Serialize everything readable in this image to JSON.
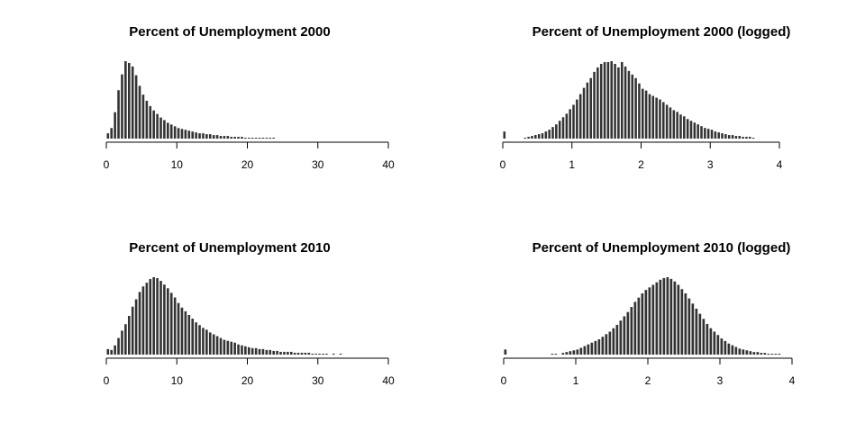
{
  "chart_data": [
    {
      "type": "bar",
      "title": "Percent of Unemployment 2000",
      "xlabel": "",
      "ylabel": "",
      "xlim": [
        0,
        40
      ],
      "xticks": [
        0,
        10,
        20,
        30,
        40
      ],
      "tick_labels": [
        "0",
        "10",
        "20",
        "30",
        "40"
      ],
      "bin_width": 0.5,
      "x": [
        0.0,
        0.5,
        1.0,
        1.5,
        2.0,
        2.5,
        3.0,
        3.5,
        4.0,
        4.5,
        5.0,
        5.5,
        6.0,
        6.5,
        7.0,
        7.5,
        8.0,
        8.5,
        9.0,
        9.5,
        10.0,
        10.5,
        11.0,
        11.5,
        12.0,
        12.5,
        13.0,
        13.5,
        14.0,
        14.5,
        15.0,
        15.5,
        16.0,
        16.5,
        17.0,
        17.5,
        18.0,
        18.5,
        19.0,
        19.5,
        20.0,
        20.5,
        21.0,
        21.5,
        22.0,
        22.5,
        23.0,
        23.5
      ],
      "values": [
        6,
        12,
        30,
        55,
        73,
        88,
        86,
        82,
        72,
        60,
        50,
        43,
        37,
        32,
        28,
        24,
        21,
        18,
        16,
        14,
        12,
        11,
        10,
        9,
        8,
        7,
        6,
        6,
        5,
        5,
        4,
        4,
        3,
        3,
        3,
        2,
        2,
        2,
        2,
        1,
        1,
        1,
        1,
        1,
        1,
        1,
        1,
        1
      ],
      "grid": false
    },
    {
      "type": "bar",
      "title": "Percent of Unemployment 2000 (logged)",
      "xlabel": "",
      "ylabel": "",
      "xlim": [
        0,
        4
      ],
      "xticks": [
        0,
        1,
        2,
        3,
        4
      ],
      "tick_labels": [
        "0",
        "1",
        "2",
        "3",
        "4"
      ],
      "bin_width": 0.05,
      "x": [
        0.0,
        0.3,
        0.35,
        0.4,
        0.45,
        0.5,
        0.55,
        0.6,
        0.65,
        0.7,
        0.75,
        0.8,
        0.85,
        0.9,
        0.95,
        1.0,
        1.05,
        1.1,
        1.15,
        1.2,
        1.25,
        1.3,
        1.35,
        1.4,
        1.45,
        1.5,
        1.55,
        1.6,
        1.65,
        1.7,
        1.75,
        1.8,
        1.85,
        1.9,
        1.95,
        2.0,
        2.05,
        2.1,
        2.15,
        2.2,
        2.25,
        2.3,
        2.35,
        2.4,
        2.45,
        2.5,
        2.55,
        2.6,
        2.65,
        2.7,
        2.75,
        2.8,
        2.85,
        2.9,
        2.95,
        3.0,
        3.05,
        3.1,
        3.15,
        3.2,
        3.25,
        3.3,
        3.35,
        3.4,
        3.45,
        3.5,
        3.55,
        3.6
      ],
      "values": [
        8,
        1,
        2,
        3,
        4,
        5,
        6,
        8,
        10,
        13,
        16,
        20,
        24,
        28,
        33,
        38,
        44,
        50,
        57,
        63,
        68,
        75,
        80,
        84,
        86,
        86,
        87,
        84,
        80,
        86,
        81,
        76,
        72,
        68,
        62,
        56,
        54,
        50,
        48,
        46,
        44,
        41,
        38,
        35,
        32,
        30,
        27,
        25,
        22,
        20,
        18,
        16,
        14,
        12,
        11,
        10,
        8,
        7,
        6,
        5,
        4,
        4,
        3,
        3,
        2,
        2,
        2,
        1
      ],
      "grid": false
    },
    {
      "type": "bar",
      "title": "Percent of Unemployment 2010",
      "xlabel": "",
      "ylabel": "",
      "xlim": [
        0,
        40
      ],
      "xticks": [
        0,
        10,
        20,
        30,
        40
      ],
      "tick_labels": [
        "0",
        "10",
        "20",
        "30",
        "40"
      ],
      "bin_width": 0.5,
      "x": [
        0.0,
        0.5,
        1.0,
        1.5,
        2.0,
        2.5,
        3.0,
        3.5,
        4.0,
        4.5,
        5.0,
        5.5,
        6.0,
        6.5,
        7.0,
        7.5,
        8.0,
        8.5,
        9.0,
        9.5,
        10.0,
        10.5,
        11.0,
        11.5,
        12.0,
        12.5,
        13.0,
        13.5,
        14.0,
        14.5,
        15.0,
        15.5,
        16.0,
        16.5,
        17.0,
        17.5,
        18.0,
        18.5,
        19.0,
        19.5,
        20.0,
        20.5,
        21.0,
        21.5,
        22.0,
        22.5,
        23.0,
        23.5,
        24.0,
        24.5,
        25.0,
        25.5,
        26.0,
        26.5,
        27.0,
        27.5,
        28.0,
        28.5,
        29.0,
        29.5,
        30.0,
        30.5,
        31.0,
        32.0,
        33.0
      ],
      "values": [
        6,
        5,
        10,
        18,
        26,
        33,
        42,
        52,
        60,
        68,
        74,
        78,
        82,
        84,
        83,
        80,
        76,
        72,
        67,
        62,
        56,
        51,
        47,
        43,
        39,
        35,
        32,
        29,
        27,
        24,
        22,
        20,
        18,
        16,
        15,
        14,
        13,
        11,
        10,
        9,
        8,
        7,
        7,
        6,
        6,
        5,
        5,
        4,
        4,
        3,
        3,
        3,
        3,
        2,
        2,
        2,
        2,
        2,
        1,
        1,
        1,
        1,
        1,
        1,
        1
      ],
      "grid": false
    },
    {
      "type": "bar",
      "title": "Percent of Unemployment 2010 (logged)",
      "xlabel": "",
      "ylabel": "",
      "xlim": [
        0,
        4
      ],
      "xticks": [
        0,
        1,
        2,
        3,
        4
      ],
      "tick_labels": [
        "0",
        "1",
        "2",
        "3",
        "4"
      ],
      "bin_width": 0.05,
      "x": [
        0.0,
        0.65,
        0.7,
        0.8,
        0.85,
        0.9,
        0.95,
        1.0,
        1.05,
        1.1,
        1.15,
        1.2,
        1.25,
        1.3,
        1.35,
        1.4,
        1.45,
        1.5,
        1.55,
        1.6,
        1.65,
        1.7,
        1.75,
        1.8,
        1.85,
        1.9,
        1.95,
        2.0,
        2.05,
        2.1,
        2.15,
        2.2,
        2.25,
        2.3,
        2.35,
        2.4,
        2.45,
        2.5,
        2.55,
        2.6,
        2.65,
        2.7,
        2.75,
        2.8,
        2.85,
        2.9,
        2.95,
        3.0,
        3.05,
        3.1,
        3.15,
        3.2,
        3.25,
        3.3,
        3.35,
        3.4,
        3.45,
        3.5,
        3.55,
        3.6,
        3.65,
        3.7,
        3.75,
        3.8
      ],
      "values": [
        6,
        1,
        1,
        2,
        3,
        4,
        5,
        6,
        8,
        10,
        12,
        14,
        16,
        18,
        21,
        24,
        27,
        31,
        35,
        40,
        45,
        50,
        56,
        62,
        67,
        72,
        76,
        79,
        82,
        85,
        88,
        90,
        91,
        89,
        86,
        82,
        77,
        72,
        66,
        60,
        54,
        48,
        42,
        36,
        31,
        27,
        23,
        19,
        16,
        13,
        11,
        9,
        7,
        6,
        5,
        4,
        3,
        3,
        2,
        2,
        1,
        1,
        1,
        1
      ],
      "grid": false
    }
  ]
}
